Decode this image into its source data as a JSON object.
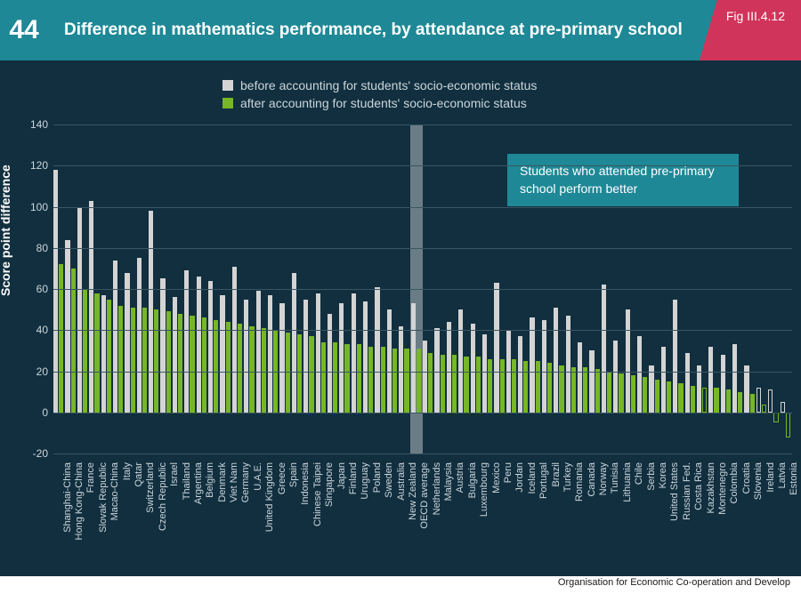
{
  "header": {
    "page_number": "44",
    "title": "Difference in mathematics performance, by attendance at pre-primary school",
    "figure_label": "Fig III.4.12",
    "icon_cells": [
      "+",
      "−",
      "×",
      "="
    ]
  },
  "legend": {
    "items": [
      {
        "label": "before accounting for students' socio-economic status",
        "color": "#d4d4d4"
      },
      {
        "label": "after accounting for students' socio-economic status",
        "color": "#77b626"
      }
    ]
  },
  "annotation": "Students who attended pre-primary school perform better",
  "y_axis": {
    "label": "Score point difference",
    "min": -20,
    "max": 140,
    "tick_step": 20,
    "label_color": "#ffffff",
    "tick_color": "#ccd6dc"
  },
  "colors": {
    "background": "#112f3f",
    "header_bg": "#1e8896",
    "fig_bg": "#d1345b",
    "grid": "#3a5562",
    "bar_before": "#d4d4d4",
    "bar_after": "#77b626",
    "highlight": "rgba(180,190,195,0.55)"
  },
  "highlight_country": "OECD average",
  "source": "Organisation for Economic Co-operation and Develop",
  "bars": [
    {
      "country": "Shanghai-China",
      "before": 118,
      "after": 72
    },
    {
      "country": "Hong Kong-China",
      "before": 84,
      "after": 70
    },
    {
      "country": "France",
      "before": 100,
      "after": 60
    },
    {
      "country": "Slovak Republic",
      "before": 103,
      "after": 58
    },
    {
      "country": "Macao-China",
      "before": 57,
      "after": 55
    },
    {
      "country": "Italy",
      "before": 74,
      "after": 52
    },
    {
      "country": "Qatar",
      "before": 68,
      "after": 51
    },
    {
      "country": "Switzerland",
      "before": 75,
      "after": 51
    },
    {
      "country": "Czech Republic",
      "before": 98,
      "after": 50
    },
    {
      "country": "Israel",
      "before": 65,
      "after": 49
    },
    {
      "country": "Thailand",
      "before": 56,
      "after": 48
    },
    {
      "country": "Argentina",
      "before": 69,
      "after": 47
    },
    {
      "country": "Belgium",
      "before": 66,
      "after": 46
    },
    {
      "country": "Denmark",
      "before": 64,
      "after": 45
    },
    {
      "country": "Viet Nam",
      "before": 57,
      "after": 44
    },
    {
      "country": "Germany",
      "before": 71,
      "after": 43
    },
    {
      "country": "U.A.E.",
      "before": 55,
      "after": 42
    },
    {
      "country": "United Kingdom",
      "before": 59,
      "after": 41
    },
    {
      "country": "Greece",
      "before": 57,
      "after": 40
    },
    {
      "country": "Spain",
      "before": 53,
      "after": 39
    },
    {
      "country": "Indonesia",
      "before": 68,
      "after": 38
    },
    {
      "country": "Chinese Taipei",
      "before": 55,
      "after": 37
    },
    {
      "country": "Singapore",
      "before": 58,
      "after": 34
    },
    {
      "country": "Japan",
      "before": 48,
      "after": 34
    },
    {
      "country": "Finland",
      "before": 53,
      "after": 33
    },
    {
      "country": "Uruguay",
      "before": 58,
      "after": 33
    },
    {
      "country": "Poland",
      "before": 54,
      "after": 32
    },
    {
      "country": "Sweden",
      "before": 61,
      "after": 32
    },
    {
      "country": "Australia",
      "before": 50,
      "after": 31
    },
    {
      "country": "New Zealand",
      "before": 42,
      "after": 31
    },
    {
      "country": "OECD average",
      "before": 53,
      "after": 31
    },
    {
      "country": "Netherlands",
      "before": 35,
      "after": 29
    },
    {
      "country": "Malaysia",
      "before": 41,
      "after": 28
    },
    {
      "country": "Austria",
      "before": 44,
      "after": 28
    },
    {
      "country": "Bulgaria",
      "before": 50,
      "after": 27
    },
    {
      "country": "Luxembourg",
      "before": 43,
      "after": 27
    },
    {
      "country": "Mexico",
      "before": 38,
      "after": 26
    },
    {
      "country": "Peru",
      "before": 63,
      "after": 26
    },
    {
      "country": "Jordan",
      "before": 40,
      "after": 26
    },
    {
      "country": "Iceland",
      "before": 37,
      "after": 25
    },
    {
      "country": "Portugal",
      "before": 46,
      "after": 25
    },
    {
      "country": "Brazil",
      "before": 45,
      "after": 24
    },
    {
      "country": "Turkey",
      "before": 51,
      "after": 23
    },
    {
      "country": "Romania",
      "before": 47,
      "after": 22
    },
    {
      "country": "Canada",
      "before": 34,
      "after": 22
    },
    {
      "country": "Norway",
      "before": 30,
      "after": 21
    },
    {
      "country": "Tunisia",
      "before": 62,
      "after": 20
    },
    {
      "country": "Lithuania",
      "before": 35,
      "after": 19
    },
    {
      "country": "Chile",
      "before": 50,
      "after": 18
    },
    {
      "country": "Serbia",
      "before": 37,
      "after": 17
    },
    {
      "country": "Korea",
      "before": 23,
      "after": 16
    },
    {
      "country": "United States",
      "before": 32,
      "after": 15
    },
    {
      "country": "Russian Fed.",
      "before": 55,
      "after": 14
    },
    {
      "country": "Costa Rica",
      "before": 29,
      "after": 13
    },
    {
      "country": "Kazakhstan",
      "before": 23,
      "after": 12,
      "hollow_after": true
    },
    {
      "country": "Montenegro",
      "before": 32,
      "after": 12
    },
    {
      "country": "Colombia",
      "before": 28,
      "after": 11
    },
    {
      "country": "Croatia",
      "before": 33,
      "after": 10
    },
    {
      "country": "Slovenia",
      "before": 23,
      "after": 9
    },
    {
      "country": "Ireland",
      "before": 12,
      "after": 4,
      "hollow_before": true,
      "hollow_after": true
    },
    {
      "country": "Latvia",
      "before": 11,
      "after": -5,
      "hollow_before": true,
      "hollow_after": true
    },
    {
      "country": "Estonia",
      "before": 5,
      "after": -12,
      "hollow_before": true,
      "hollow_after": true
    }
  ]
}
